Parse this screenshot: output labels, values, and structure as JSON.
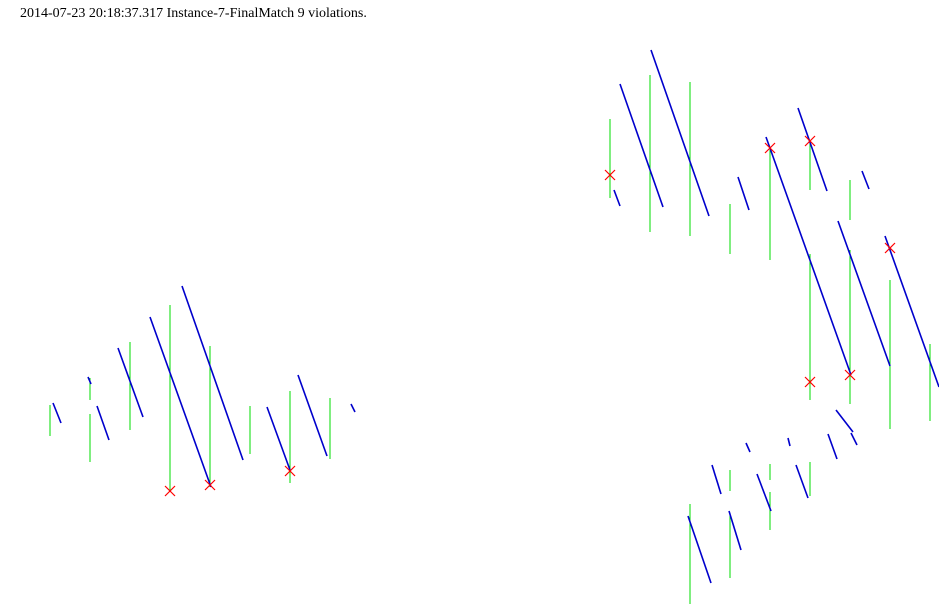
{
  "header": {
    "text": "2014-07-23 20:18:37.317 Instance-7-FinalMatch 9 violations."
  },
  "colors": {
    "background": "#ffffff",
    "blue_segment": "#0000cc",
    "green_segment": "#00dd00",
    "violation_marker": "#ff0000",
    "text": "#000000"
  }
}
